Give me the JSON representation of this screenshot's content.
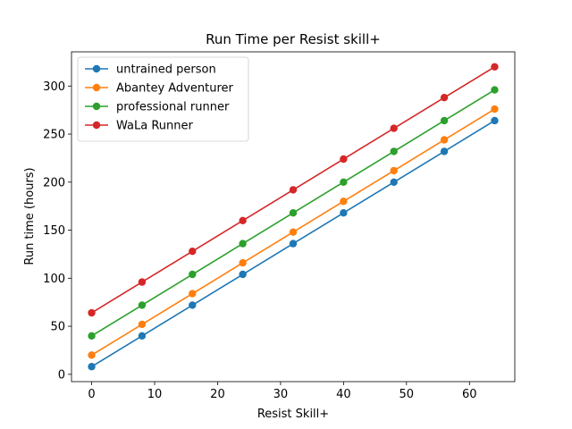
{
  "chart_data": {
    "type": "line",
    "title": "Run Time per Resist skill+",
    "xlabel": "Resist Skill+",
    "ylabel": "Run time (hours)",
    "x": [
      0,
      8,
      16,
      24,
      32,
      40,
      48,
      56,
      64
    ],
    "xlim": [
      -3.2,
      67.2
    ],
    "ylim": [
      -7.6,
      335.6
    ],
    "xticks": [
      0,
      10,
      20,
      30,
      40,
      50,
      60
    ],
    "yticks": [
      0,
      50,
      100,
      150,
      200,
      250,
      300
    ],
    "grid": false,
    "legend_position": "top-left",
    "series": [
      {
        "name": "untrained person",
        "color": "#1f77b4",
        "values": [
          8,
          40,
          72,
          104,
          136,
          168,
          200,
          232,
          264
        ]
      },
      {
        "name": "Abantey Adventurer",
        "color": "#ff7f0e",
        "values": [
          20,
          52,
          84,
          116,
          148,
          180,
          212,
          244,
          276
        ]
      },
      {
        "name": "professional runner",
        "color": "#2ca02c",
        "values": [
          40,
          72,
          104,
          136,
          168,
          200,
          232,
          264,
          296
        ]
      },
      {
        "name": "WaLa Runner",
        "color": "#d62728",
        "values": [
          64,
          96,
          128,
          160,
          192,
          224,
          256,
          288,
          320
        ]
      }
    ]
  }
}
